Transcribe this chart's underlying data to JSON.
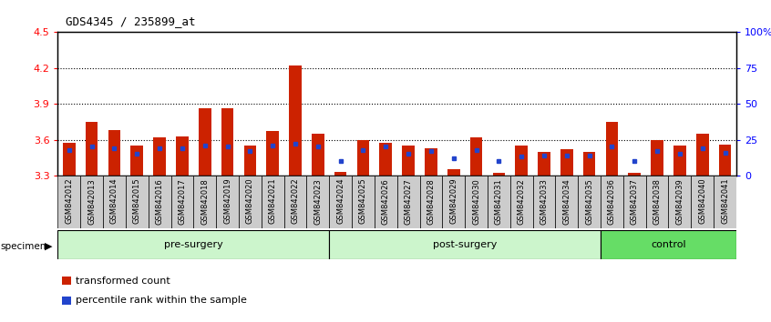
{
  "title": "GDS4345 / 235899_at",
  "samples": [
    "GSM842012",
    "GSM842013",
    "GSM842014",
    "GSM842015",
    "GSM842016",
    "GSM842017",
    "GSM842018",
    "GSM842019",
    "GSM842020",
    "GSM842021",
    "GSM842022",
    "GSM842023",
    "GSM842024",
    "GSM842025",
    "GSM842026",
    "GSM842027",
    "GSM842028",
    "GSM842029",
    "GSM842030",
    "GSM842031",
    "GSM842032",
    "GSM842033",
    "GSM842034",
    "GSM842035",
    "GSM842036",
    "GSM842037",
    "GSM842038",
    "GSM842039",
    "GSM842040",
    "GSM842041"
  ],
  "red_values": [
    3.57,
    3.75,
    3.68,
    3.55,
    3.62,
    3.63,
    3.86,
    3.86,
    3.55,
    3.67,
    4.22,
    3.65,
    3.33,
    3.6,
    3.57,
    3.55,
    3.53,
    3.35,
    3.62,
    3.32,
    3.55,
    3.5,
    3.52,
    3.5,
    3.75,
    3.32,
    3.6,
    3.55,
    3.65,
    3.56
  ],
  "blue_percentiles": [
    18,
    20,
    19,
    15,
    19,
    19,
    21,
    20,
    17,
    21,
    22,
    20,
    10,
    18,
    20,
    15,
    17,
    12,
    18,
    10,
    13,
    14,
    14,
    14,
    20,
    10,
    17,
    15,
    19,
    16
  ],
  "ymin": 3.3,
  "ymax": 4.5,
  "yticks": [
    3.3,
    3.6,
    3.9,
    4.2,
    4.5
  ],
  "right_yticks_pct": [
    0,
    25,
    50,
    75,
    100
  ],
  "right_ytick_labels": [
    "0",
    "25",
    "50",
    "75",
    "100%"
  ],
  "bar_color": "#cc2200",
  "marker_color": "#2244cc",
  "group_labels": [
    "pre-surgery",
    "post-surgery",
    "control"
  ],
  "group_starts": [
    0,
    12,
    24
  ],
  "group_ends": [
    12,
    24,
    30
  ],
  "group_colors_light": [
    "#ccf5cc",
    "#ccf5cc",
    "#66dd66"
  ],
  "legend_red": "transformed count",
  "legend_blue": "percentile rank within the sample",
  "tick_bg_color": "#cccccc"
}
